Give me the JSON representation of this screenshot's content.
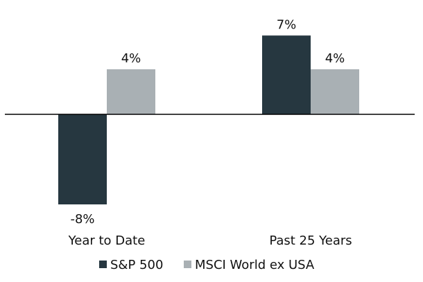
{
  "chart_data": {
    "type": "bar",
    "categories": [
      "Year to Date",
      "Past 25 Years"
    ],
    "series": [
      {
        "name": "S&P 500",
        "values": [
          -8,
          7
        ],
        "labels": [
          "-8%",
          "7%"
        ],
        "color": "#263740"
      },
      {
        "name": "MSCI World ex USA",
        "values": [
          4,
          4
        ],
        "labels": [
          "4%",
          "4%"
        ],
        "color": "#a9b0b4"
      }
    ],
    "ylim": [
      -8.5,
      8
    ],
    "grid": false,
    "legend_position": "bottom",
    "title": "",
    "xlabel": "",
    "ylabel": ""
  }
}
